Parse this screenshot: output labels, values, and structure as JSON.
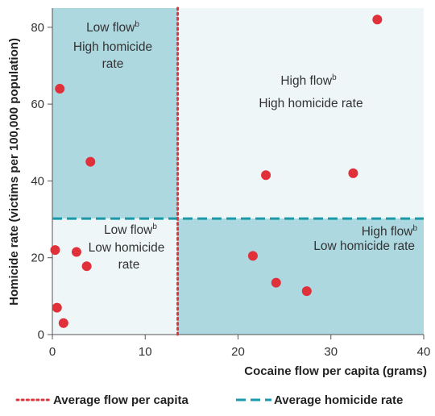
{
  "chart_data": {
    "type": "scatter",
    "xlabel": "Cocaine flow per capita (grams)",
    "ylabel": "Homicide rate (victims per 100,000 population)",
    "xlim": [
      0,
      40
    ],
    "ylim": [
      0,
      85
    ],
    "xticks": [
      0,
      10,
      20,
      30,
      40
    ],
    "yticks": [
      0,
      20,
      40,
      60,
      80
    ],
    "average_flow": 13.5,
    "average_homicide_rate": 30.2,
    "points": [
      {
        "x": 0.3,
        "y": 22.0
      },
      {
        "x": 0.5,
        "y": 7.0
      },
      {
        "x": 0.8,
        "y": 64.0
      },
      {
        "x": 1.2,
        "y": 3.0
      },
      {
        "x": 2.6,
        "y": 21.5
      },
      {
        "x": 3.7,
        "y": 17.8
      },
      {
        "x": 4.1,
        "y": 45.0
      },
      {
        "x": 21.6,
        "y": 20.5
      },
      {
        "x": 23.0,
        "y": 41.5
      },
      {
        "x": 24.1,
        "y": 13.5
      },
      {
        "x": 27.4,
        "y": 11.3
      },
      {
        "x": 32.4,
        "y": 42.0
      },
      {
        "x": 35.0,
        "y": 82.0
      }
    ],
    "quadrants": {
      "low_high": {
        "line1": "Low flow",
        "line1_sup": "b",
        "line2": "High homicide",
        "line3": "rate"
      },
      "high_high": {
        "line1": "High flow",
        "line1_sup": "b",
        "line2": "High homicide rate"
      },
      "low_low": {
        "line1": "Low flow",
        "line1_sup": "b",
        "line2": "Low homicide",
        "line3": "rate"
      },
      "high_low": {
        "line1": "High flow",
        "line1_sup": "b",
        "line2": "Low homicide rate"
      }
    },
    "legend": [
      {
        "label": "Average flow per capita",
        "style": "dotted",
        "color": "#d9363e"
      },
      {
        "label": "Average homicide rate",
        "style": "dashed",
        "color": "#1a9aa8"
      }
    ],
    "colors": {
      "point": "#e0303a",
      "dark_quadrant": "#add8e0",
      "light_quadrant": "#eef6f8",
      "flow_line": "#d9363e",
      "homicide_line": "#1a9aa8"
    }
  }
}
